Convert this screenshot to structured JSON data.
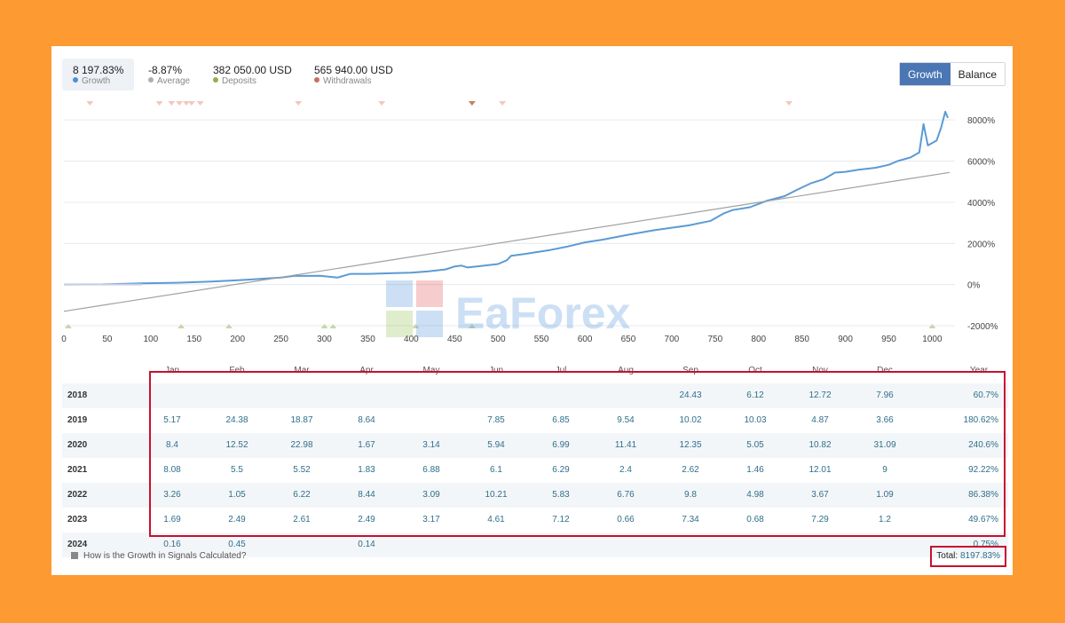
{
  "stats": [
    {
      "value": "8 197.83%",
      "label": "Growth",
      "color": "#4a90d9"
    },
    {
      "value": "-8.87%",
      "label": "Average",
      "color": "#a8b0b0"
    },
    {
      "value": "382 050.00 USD",
      "label": "Deposits",
      "color": "#8fb04a"
    },
    {
      "value": "565 940.00 USD",
      "label": "Withdrawals",
      "color": "#c8705a"
    }
  ],
  "toggle": {
    "growth": "Growth",
    "balance": "Balance"
  },
  "watermark": "EaForex",
  "chart_data": {
    "type": "line",
    "x_ticks": [
      0,
      50,
      100,
      150,
      200,
      250,
      300,
      350,
      400,
      450,
      500,
      550,
      600,
      650,
      700,
      750,
      800,
      850,
      900,
      950,
      1000
    ],
    "y_ticks": [
      "8000%",
      "6000%",
      "4000%",
      "2000%",
      "0%",
      "-2000%"
    ],
    "xlim": [
      0,
      1020
    ],
    "ylim": [
      -2000,
      9000
    ],
    "series": [
      {
        "color": "#5b9bd5",
        "points": [
          [
            0,
            0
          ],
          [
            45,
            10
          ],
          [
            90,
            60
          ],
          [
            130,
            90
          ],
          [
            170,
            150
          ],
          [
            210,
            230
          ],
          [
            250,
            340
          ],
          [
            265,
            420
          ],
          [
            295,
            430
          ],
          [
            315,
            340
          ],
          [
            330,
            520
          ],
          [
            350,
            520
          ],
          [
            380,
            560
          ],
          [
            400,
            580
          ],
          [
            420,
            640
          ],
          [
            440,
            740
          ],
          [
            450,
            880
          ],
          [
            458,
            920
          ],
          [
            465,
            830
          ],
          [
            480,
            900
          ],
          [
            500,
            1000
          ],
          [
            510,
            1180
          ],
          [
            515,
            1400
          ],
          [
            530,
            1480
          ],
          [
            560,
            1680
          ],
          [
            580,
            1850
          ],
          [
            600,
            2050
          ],
          [
            620,
            2180
          ],
          [
            650,
            2420
          ],
          [
            680,
            2640
          ],
          [
            720,
            2880
          ],
          [
            745,
            3100
          ],
          [
            760,
            3460
          ],
          [
            770,
            3620
          ],
          [
            790,
            3760
          ],
          [
            810,
            4080
          ],
          [
            830,
            4300
          ],
          [
            845,
            4620
          ],
          [
            860,
            4920
          ],
          [
            875,
            5120
          ],
          [
            888,
            5440
          ],
          [
            900,
            5480
          ],
          [
            915,
            5580
          ],
          [
            935,
            5680
          ],
          [
            950,
            5820
          ],
          [
            960,
            6000
          ],
          [
            975,
            6180
          ],
          [
            985,
            6420
          ],
          [
            990,
            7800
          ],
          [
            995,
            6760
          ],
          [
            1005,
            7000
          ],
          [
            1010,
            7600
          ],
          [
            1015,
            8400
          ],
          [
            1018,
            8100
          ]
        ]
      },
      {
        "color": "#a0a0a0",
        "points": [
          [
            0,
            -1300
          ],
          [
            1020,
            5450
          ]
        ]
      }
    ],
    "markers_top": [
      30,
      110,
      124,
      133,
      141,
      147,
      157,
      270,
      366,
      470,
      505,
      835
    ],
    "markers_bottom": [
      5,
      135,
      190,
      300,
      310,
      405,
      470,
      1000
    ]
  },
  "table": {
    "months": [
      "Jan",
      "Feb",
      "Mar",
      "Apr",
      "May",
      "Jun",
      "Jul",
      "Aug",
      "Sep",
      "Oct",
      "Nov",
      "Dec"
    ],
    "year_label": "Year",
    "rows": [
      {
        "year": "2018",
        "values": [
          "",
          "",
          "",
          "",
          "",
          "",
          "",
          "",
          "24.43",
          "6.12",
          "12.72",
          "7.96"
        ],
        "total": "60.7%"
      },
      {
        "year": "2019",
        "values": [
          "5.17",
          "24.38",
          "18.87",
          "8.64",
          "",
          "7.85",
          "6.85",
          "9.54",
          "10.02",
          "10.03",
          "4.87",
          "3.66"
        ],
        "total": "180.62%"
      },
      {
        "year": "2020",
        "values": [
          "8.4",
          "12.52",
          "22.98",
          "1.67",
          "3.14",
          "5.94",
          "6.99",
          "11.41",
          "12.35",
          "5.05",
          "10.82",
          "31.09"
        ],
        "total": "240.6%"
      },
      {
        "year": "2021",
        "values": [
          "8.08",
          "5.5",
          "5.52",
          "1.83",
          "6.88",
          "6.1",
          "6.29",
          "2.4",
          "2.62",
          "1.46",
          "12.01",
          "9"
        ],
        "total": "92.22%"
      },
      {
        "year": "2022",
        "values": [
          "3.26",
          "1.05",
          "6.22",
          "8.44",
          "3.09",
          "10.21",
          "5.83",
          "6.76",
          "9.8",
          "4.98",
          "3.67",
          "1.09"
        ],
        "total": "86.38%"
      },
      {
        "year": "2023",
        "values": [
          "1.69",
          "2.49",
          "2.61",
          "2.49",
          "3.17",
          "4.61",
          "7.12",
          "0.66",
          "7.34",
          "0.68",
          "7.29",
          "1.2"
        ],
        "total": "49.67%"
      },
      {
        "year": "2024",
        "values": [
          "0.16",
          "0.45",
          "",
          "0.14",
          "",
          "",
          "",
          "",
          "",
          "",
          "",
          ""
        ],
        "total": "0.75%"
      }
    ]
  },
  "footer": {
    "help_text": "How is the Growth in Signals Calculated?",
    "total_label": "Total:",
    "total_value": "8197.83%"
  }
}
